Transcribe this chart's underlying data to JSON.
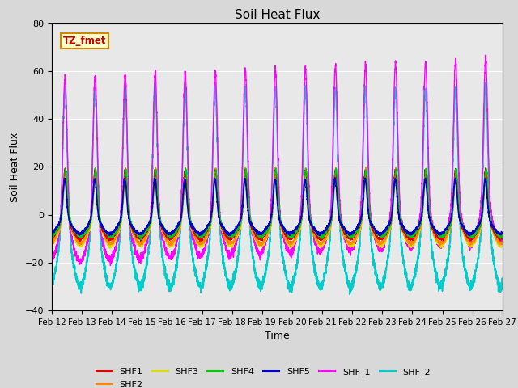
{
  "title": "Soil Heat Flux",
  "xlabel": "Time",
  "ylabel": "Soil Heat Flux",
  "ylim": [
    -40,
    80
  ],
  "xlim": [
    0,
    15
  ],
  "xtick_labels": [
    "Feb 12",
    "Feb 13",
    "Feb 14",
    "Feb 15",
    "Feb 16",
    "Feb 17",
    "Feb 18",
    "Feb 19",
    "Feb 20",
    "Feb 21",
    "Feb 22",
    "Feb 23",
    "Feb 24",
    "Feb 25",
    "Feb 26",
    "Feb 27"
  ],
  "ytick_values": [
    -40,
    -20,
    0,
    20,
    40,
    60,
    80
  ],
  "annotation_text": "TZ_fmet",
  "annotation_color": "#cc0000",
  "annotation_bg": "#ffffcc",
  "annotation_border": "#cc8800",
  "series": {
    "SHF1": {
      "color": "#dd0000",
      "lw": 1.0
    },
    "SHF2": {
      "color": "#ff8800",
      "lw": 1.0
    },
    "SHF3": {
      "color": "#dddd00",
      "lw": 1.0
    },
    "SHF4": {
      "color": "#00cc00",
      "lw": 1.0
    },
    "SHF5": {
      "color": "#0000cc",
      "lw": 1.2
    },
    "SHF_1": {
      "color": "#ff00ff",
      "lw": 1.0
    },
    "SHF_2": {
      "color": "#00cccc",
      "lw": 1.2
    }
  },
  "legend_order": [
    "SHF1",
    "SHF2",
    "SHF3",
    "SHF4",
    "SHF5",
    "SHF_1",
    "SHF_2"
  ],
  "bg_color": "#e8e8e8",
  "grid_color": "#ffffff",
  "num_days": 15,
  "pts_per_day": 288
}
